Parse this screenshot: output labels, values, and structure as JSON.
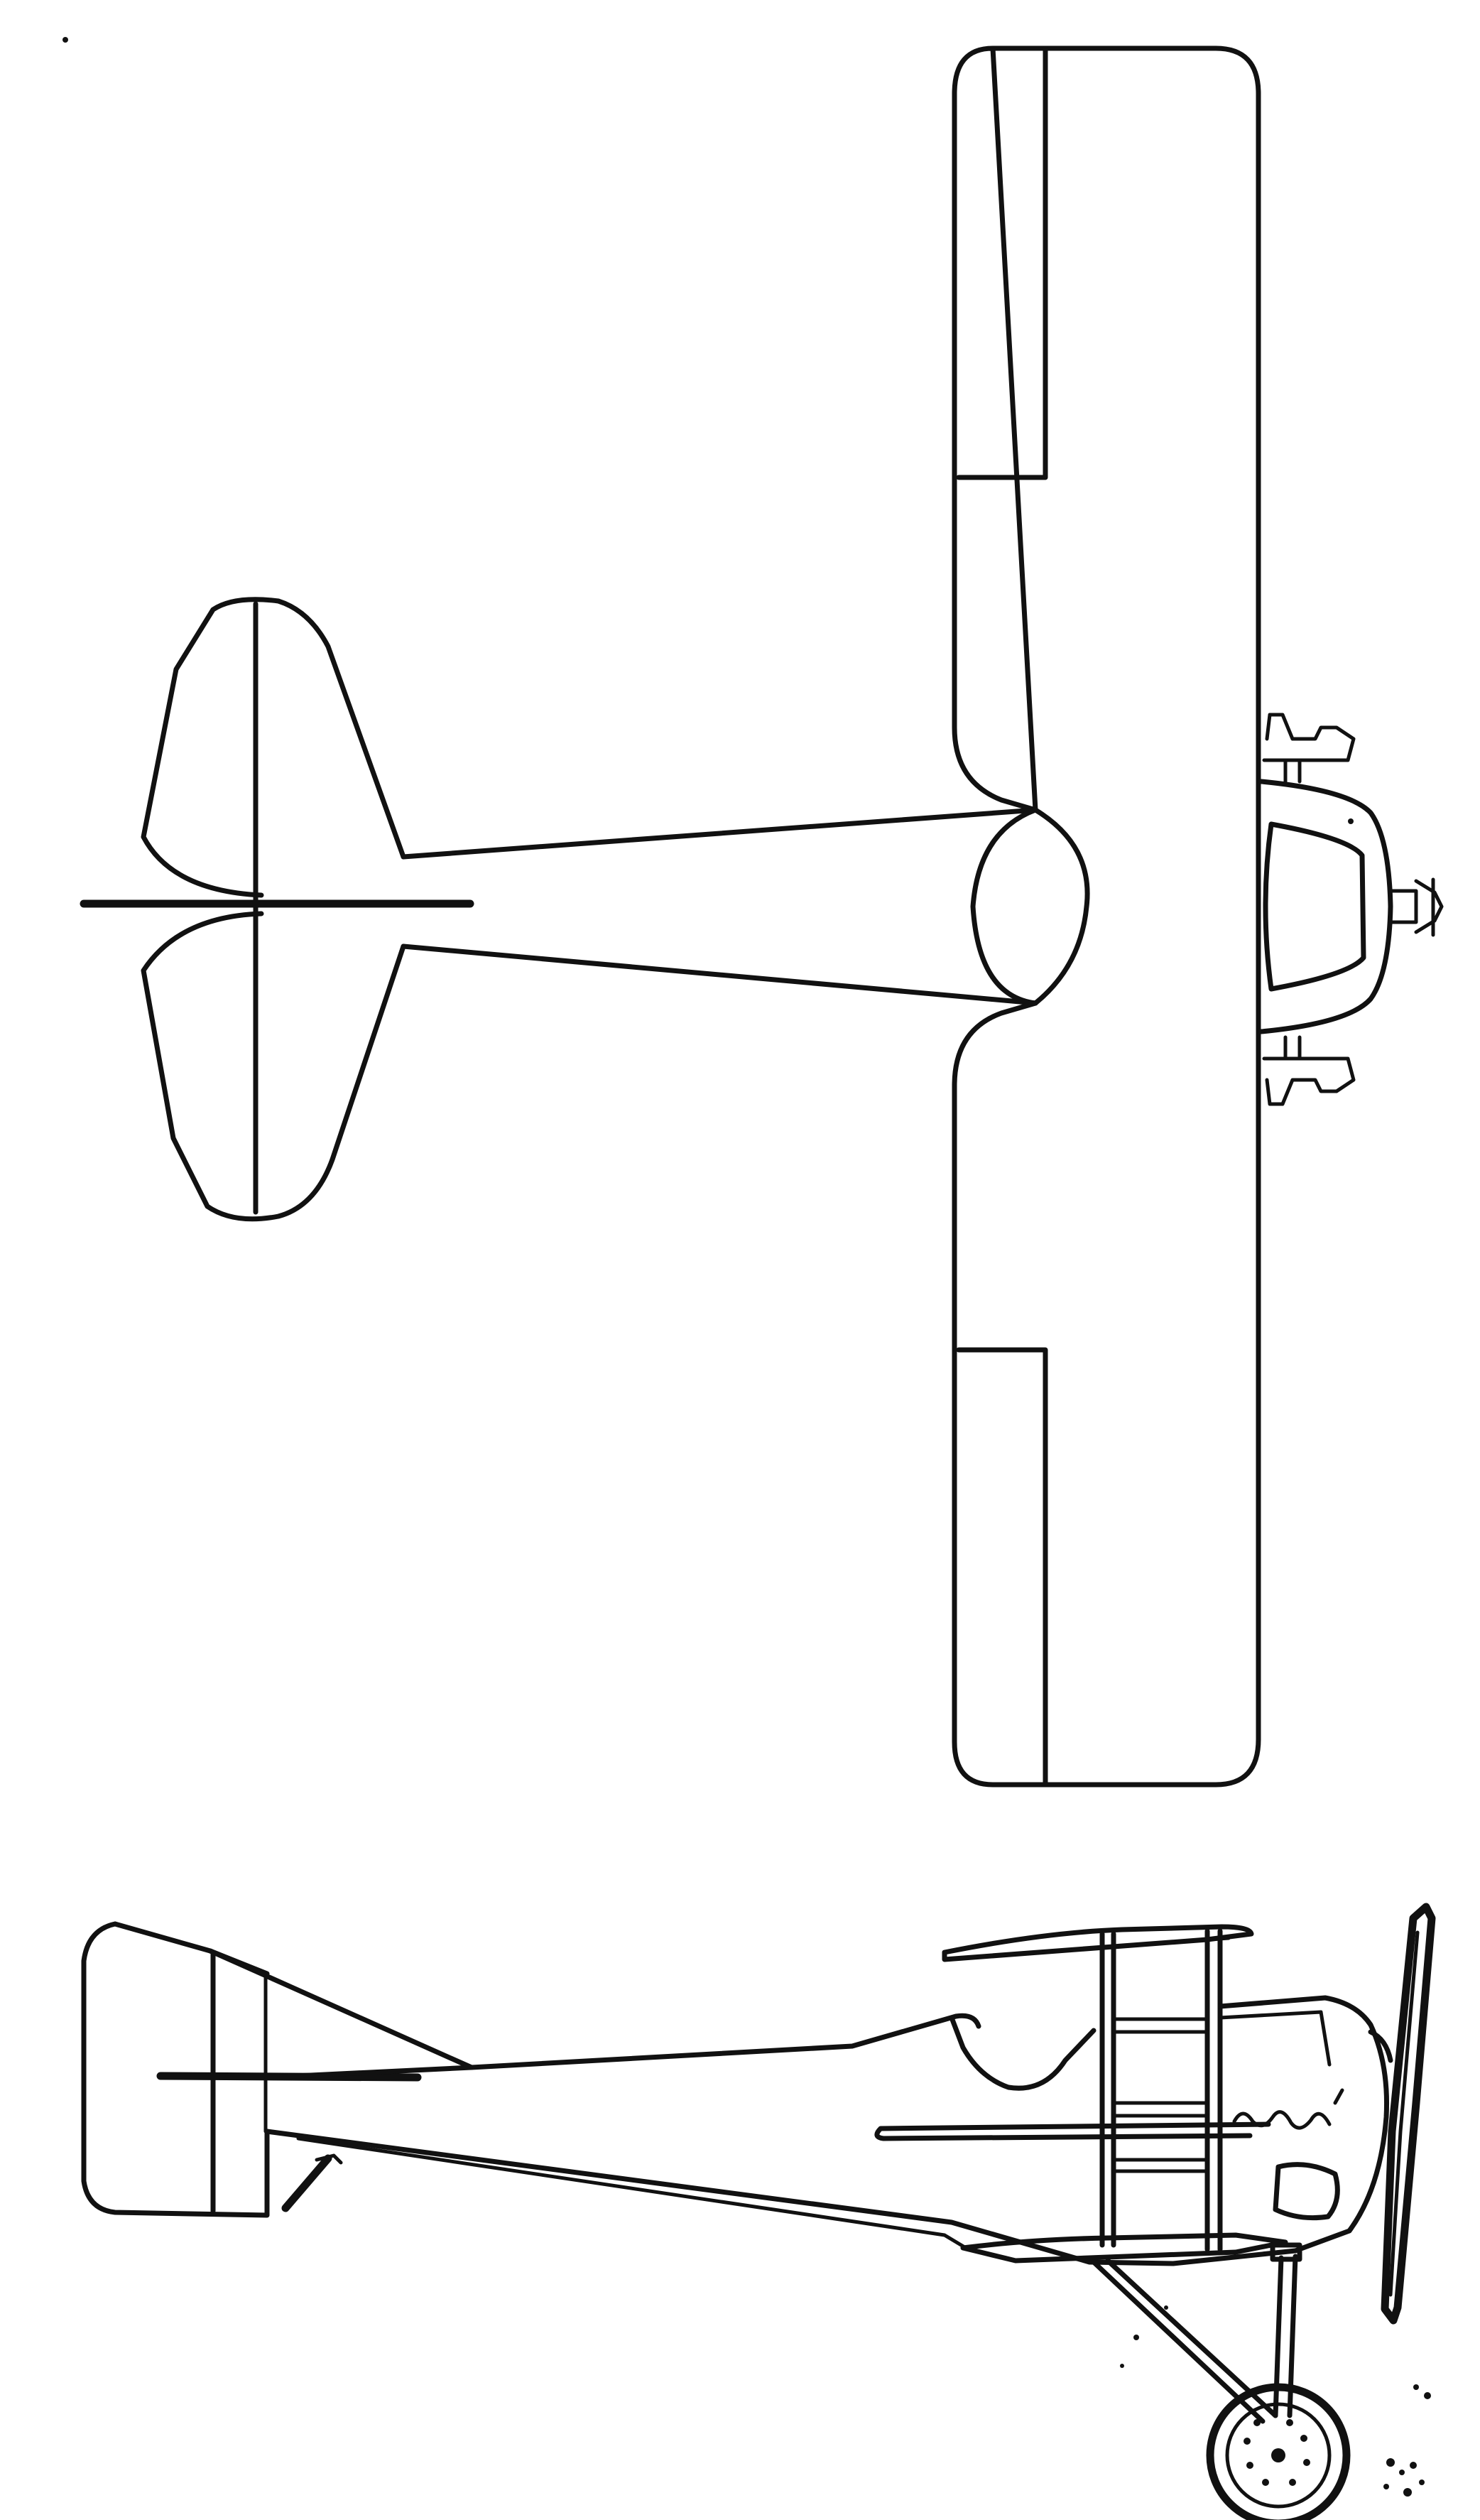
{
  "figure": {
    "ink_color": "#111111",
    "paper_color": "#ffffff",
    "views": [
      "plan-view",
      "side-elevation"
    ]
  }
}
